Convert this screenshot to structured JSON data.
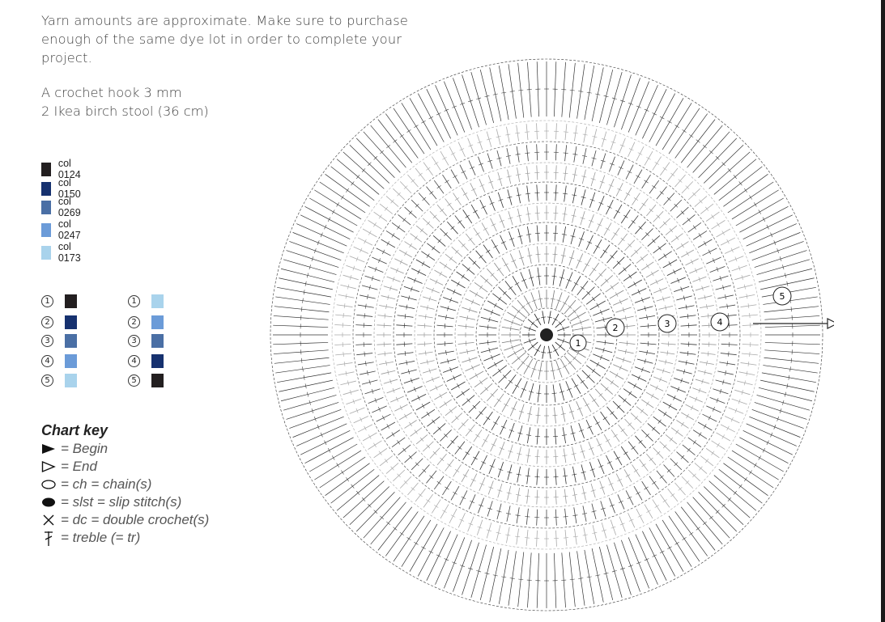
{
  "intro": {
    "line1": "Yarn amounts are approximate. Make sure to purchase",
    "line2": "enough of the same dye lot in order to complete your",
    "line3": "project."
  },
  "materials": {
    "hook": "A crochet hook 3 mm",
    "stool": "2 Ikea birch stool (36 cm)"
  },
  "colors": [
    {
      "label": "col 0124",
      "hex": "#231f20"
    },
    {
      "label": "col 0150",
      "hex": "#16316f"
    },
    {
      "label": "col 0269",
      "hex": "#4a6fa5"
    },
    {
      "label": "col 0247",
      "hex": "#6b9bd8"
    },
    {
      "label": "col 0173",
      "hex": "#a9d3ec"
    }
  ],
  "round_tables": [
    {
      "rounds": [
        {
          "num": "1",
          "hex": "#231f20"
        },
        {
          "num": "2",
          "hex": "#16316f"
        },
        {
          "num": "3",
          "hex": "#4a6fa5"
        },
        {
          "num": "4",
          "hex": "#6b9bd8"
        },
        {
          "num": "5",
          "hex": "#a9d3ec"
        }
      ]
    },
    {
      "rounds": [
        {
          "num": "1",
          "hex": "#a9d3ec"
        },
        {
          "num": "2",
          "hex": "#6b9bd8"
        },
        {
          "num": "3",
          "hex": "#4a6fa5"
        },
        {
          "num": "4",
          "hex": "#16316f"
        },
        {
          "num": "5",
          "hex": "#231f20"
        }
      ]
    }
  ],
  "chart_key": {
    "title": "Chart key",
    "entries": [
      {
        "symbol": "begin-triangle-icon",
        "text": "= Begin"
      },
      {
        "symbol": "end-triangle-icon",
        "text": "= End"
      },
      {
        "symbol": "chain-oval-icon",
        "text": "= ch = chain(s)"
      },
      {
        "symbol": "slip-stitch-icon",
        "text": "= slst = slip stitch(s)"
      },
      {
        "symbol": "double-crochet-icon",
        "text": "= dc = double crochet(s)"
      },
      {
        "symbol": "treble-icon",
        "text": "= treble (= tr)"
      }
    ]
  },
  "diagram": {
    "round_labels": [
      "1",
      "2",
      "3",
      "4",
      "5"
    ]
  }
}
